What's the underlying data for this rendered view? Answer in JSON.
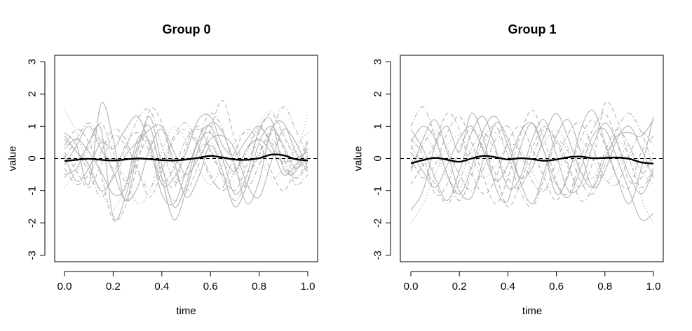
{
  "chart_data": [
    {
      "type": "line",
      "title": "Group 0",
      "xlabel": "time",
      "ylabel": "value",
      "xlim": [
        0,
        1
      ],
      "ylim": [
        -3.2,
        3.2
      ],
      "xticks": [
        "0.0",
        "0.2",
        "0.4",
        "0.6",
        "0.8",
        "1.0"
      ],
      "yticks": [
        "-3",
        "-2",
        "-1",
        "0",
        "1",
        "2",
        "3"
      ],
      "reference_line_y": 0,
      "mean_series": {
        "x": [
          0.0,
          0.05,
          0.1,
          0.15,
          0.2,
          0.25,
          0.3,
          0.35,
          0.4,
          0.45,
          0.5,
          0.55,
          0.6,
          0.65,
          0.7,
          0.75,
          0.8,
          0.85,
          0.9,
          0.95,
          1.0
        ],
        "y": [
          -0.08,
          -0.04,
          -0.01,
          -0.04,
          -0.06,
          -0.03,
          0.0,
          -0.02,
          -0.05,
          -0.06,
          -0.03,
          0.02,
          0.08,
          0.03,
          -0.03,
          -0.04,
          0.01,
          0.12,
          0.1,
          -0.02,
          -0.06
        ]
      },
      "sample_curves": [
        {
          "style": "solid",
          "y": [
            0.8,
            0.4,
            -0.8,
            1.7,
            0.6,
            -1.3,
            0.2,
            1.3,
            -0.2,
            -1.5,
            -0.8,
            0.6,
            1.0,
            0.0,
            -1.1,
            -0.5,
            0.9,
            1.2,
            -0.3,
            -0.4,
            0.5
          ]
        },
        {
          "style": "solid",
          "y": [
            -0.5,
            -0.3,
            0.5,
            0.9,
            -1.8,
            -1.2,
            0.4,
            1.0,
            -0.6,
            -1.9,
            -1.0,
            0.3,
            1.1,
            0.8,
            -0.2,
            -1.4,
            -0.7,
            0.9,
            1.1,
            0.2,
            -0.4
          ]
        },
        {
          "style": "solid",
          "y": [
            0.3,
            0.6,
            0.2,
            -0.4,
            -1.1,
            -0.9,
            0.6,
            0.5,
            -0.8,
            -0.6,
            0.2,
            1.2,
            1.3,
            0.4,
            0.1,
            0.6,
            1.0,
            0.4,
            -0.5,
            -0.2,
            0.3
          ]
        },
        {
          "style": "solid",
          "y": [
            -0.2,
            0.4,
            1.0,
            0.3,
            -0.4,
            -1.3,
            -0.9,
            0.3,
            0.9,
            -0.1,
            -1.2,
            -0.6,
            0.4,
            -0.4,
            -1.5,
            -0.8,
            0.5,
            1.0,
            0.4,
            -0.3,
            0.1
          ]
        },
        {
          "style": "solid",
          "y": [
            0.1,
            -0.7,
            -0.3,
            0.5,
            0.3,
            0.9,
            1.3,
            0.4,
            -1.1,
            -1.4,
            -0.4,
            0.5,
            0.8,
            0.1,
            -0.4,
            0.3,
            0.6,
            0.2,
            -0.1,
            0.0,
            0.2
          ]
        },
        {
          "style": "solid",
          "y": [
            0.7,
            0.2,
            -0.2,
            -1.0,
            -0.6,
            0.1,
            0.5,
            0.9,
            1.0,
            0.2,
            -0.5,
            0.0,
            0.6,
            0.7,
            0.3,
            -0.8,
            -1.2,
            -0.1,
            0.9,
            0.5,
            -0.3
          ]
        },
        {
          "style": "dashed",
          "y": [
            0.4,
            0.9,
            0.5,
            -0.5,
            -1.9,
            -1.5,
            -0.2,
            1.5,
            1.1,
            -0.3,
            -1.0,
            -0.2,
            0.9,
            1.8,
            0.6,
            -0.4,
            0.1,
            0.9,
            0.3,
            -0.6,
            -0.2
          ]
        },
        {
          "style": "dashed",
          "y": [
            -0.6,
            -0.1,
            0.4,
            1.1,
            0.2,
            -0.7,
            0.0,
            0.6,
            -0.3,
            -0.9,
            0.4,
            1.0,
            0.2,
            -0.5,
            -1.0,
            -0.2,
            0.8,
            1.4,
            0.7,
            0.0,
            -0.4
          ]
        },
        {
          "style": "dashed",
          "y": [
            0.2,
            -0.4,
            -0.9,
            -0.2,
            0.7,
            0.4,
            -0.3,
            -1.2,
            -0.4,
            0.6,
            0.9,
            0.3,
            -0.6,
            -0.9,
            0.2,
            0.9,
            0.5,
            -0.4,
            -1.0,
            -0.3,
            0.6
          ]
        },
        {
          "style": "dotted",
          "y": [
            1.5,
            0.8,
            -0.3,
            -1.0,
            -1.6,
            -0.8,
            0.3,
            0.1,
            -0.6,
            -1.3,
            -0.9,
            0.2,
            0.5,
            -0.1,
            -0.5,
            0.2,
            1.1,
            1.5,
            0.8,
            0.2,
            1.4
          ]
        },
        {
          "style": "dotted",
          "y": [
            -0.9,
            -0.4,
            0.3,
            0.6,
            0.0,
            -0.6,
            -1.4,
            -1.0,
            0.2,
            1.0,
            0.5,
            -0.3,
            -0.8,
            -0.2,
            0.5,
            0.8,
            0.1,
            -0.6,
            -0.3,
            0.4,
            0.8
          ]
        },
        {
          "style": "dashdot",
          "y": [
            0.0,
            0.6,
            1.1,
            0.5,
            -0.3,
            0.3,
            1.2,
            1.5,
            0.4,
            -0.7,
            -0.4,
            0.6,
            1.4,
            0.9,
            -0.3,
            -0.9,
            -0.2,
            0.8,
            1.6,
            0.9,
            0.1
          ]
        },
        {
          "style": "dashdot",
          "y": [
            -0.3,
            -0.8,
            -0.5,
            0.2,
            0.9,
            0.6,
            -0.4,
            -0.9,
            -0.2,
            0.7,
            1.1,
            0.4,
            -0.5,
            -1.0,
            -0.4,
            0.3,
            0.9,
            0.5,
            -0.2,
            -0.6,
            -0.1
          ]
        },
        {
          "style": "dashdot",
          "y": [
            0.6,
            0.2,
            -0.4,
            -1.2,
            -0.5,
            0.4,
            0.8,
            0.2,
            -0.7,
            -0.3,
            0.6,
            0.9,
            0.3,
            -0.6,
            -1.3,
            -0.7,
            0.2,
            0.6,
            0.0,
            -0.8,
            -0.5
          ]
        }
      ]
    },
    {
      "type": "line",
      "title": "Group 1",
      "xlabel": "time",
      "ylabel": "value",
      "xlim": [
        0,
        1
      ],
      "ylim": [
        -3.2,
        3.2
      ],
      "xticks": [
        "0.0",
        "0.2",
        "0.4",
        "0.6",
        "0.8",
        "1.0"
      ],
      "yticks": [
        "-3",
        "-2",
        "-1",
        "0",
        "1",
        "2",
        "3"
      ],
      "reference_line_y": 0,
      "mean_series": {
        "x": [
          0.0,
          0.05,
          0.1,
          0.15,
          0.2,
          0.25,
          0.3,
          0.35,
          0.4,
          0.45,
          0.5,
          0.55,
          0.6,
          0.65,
          0.7,
          0.75,
          0.8,
          0.85,
          0.9,
          0.95,
          1.0
        ],
        "y": [
          -0.15,
          -0.05,
          0.02,
          -0.04,
          -0.1,
          0.0,
          0.08,
          0.04,
          -0.03,
          0.01,
          -0.02,
          -0.07,
          -0.03,
          0.04,
          0.06,
          0.01,
          0.02,
          0.03,
          -0.01,
          -0.12,
          -0.16
        ]
      },
      "sample_curves": [
        {
          "style": "solid",
          "y": [
            -1.6,
            -1.0,
            0.4,
            1.0,
            0.2,
            1.4,
            0.6,
            -0.9,
            -1.3,
            0.3,
            1.1,
            0.2,
            -1.1,
            -0.5,
            0.9,
            1.5,
            0.5,
            -0.6,
            -1.4,
            -0.3,
            1.3
          ]
        },
        {
          "style": "solid",
          "y": [
            0.9,
            0.3,
            -0.6,
            -1.3,
            -0.4,
            0.8,
            1.3,
            0.3,
            -0.9,
            -0.6,
            0.6,
            1.2,
            0.1,
            -1.0,
            -0.8,
            0.4,
            1.1,
            0.5,
            -0.5,
            -1.1,
            -0.4
          ]
        },
        {
          "style": "solid",
          "y": [
            -0.4,
            0.6,
            1.2,
            0.2,
            -1.0,
            -1.2,
            0.0,
            1.1,
            0.6,
            -0.7,
            -1.4,
            -0.4,
            0.7,
            1.2,
            0.2,
            -0.9,
            -0.4,
            0.6,
            1.0,
            0.3,
            -0.6
          ]
        },
        {
          "style": "solid",
          "y": [
            0.2,
            -0.4,
            -0.9,
            -0.2,
            0.6,
            1.0,
            0.2,
            -0.7,
            -0.2,
            0.8,
            1.1,
            0.2,
            -0.8,
            -1.2,
            -0.3,
            0.7,
            0.9,
            0.0,
            -1.0,
            -1.9,
            -1.7
          ]
        },
        {
          "style": "solid",
          "y": [
            0.5,
            1.0,
            0.6,
            -0.5,
            -1.1,
            -0.3,
            0.9,
            1.3,
            0.4,
            -0.6,
            -0.3,
            0.7,
            1.4,
            0.6,
            -0.4,
            -0.9,
            0.0,
            0.7,
            0.8,
            0.7,
            1.2
          ]
        },
        {
          "style": "dashed",
          "y": [
            0.0,
            -0.6,
            -0.2,
            0.8,
            1.3,
            0.5,
            -0.6,
            -1.4,
            -0.6,
            0.7,
            1.5,
            0.6,
            -0.7,
            -1.1,
            0.0,
            0.9,
            1.4,
            0.5,
            -0.7,
            -0.6,
            0.2
          ]
        },
        {
          "style": "dashed",
          "y": [
            -0.8,
            -0.2,
            0.5,
            1.4,
            0.9,
            -0.4,
            -1.1,
            -0.6,
            0.5,
            1.0,
            0.3,
            -0.6,
            -1.3,
            -0.4,
            0.6,
            1.2,
            0.4,
            -0.6,
            -0.9,
            0.2,
            0.7
          ]
        },
        {
          "style": "dashed",
          "y": [
            0.6,
            0.1,
            -1.1,
            -0.8,
            0.3,
            0.9,
            0.3,
            -0.5,
            -1.5,
            -0.8,
            0.3,
            1.0,
            0.5,
            -0.3,
            -0.9,
            -0.1,
            1.7,
            1.2,
            0.0,
            -0.9,
            -0.3
          ]
        },
        {
          "style": "dotted",
          "y": [
            -2.0,
            -1.4,
            -0.5,
            0.4,
            0.7,
            0.1,
            -0.6,
            -0.2,
            0.4,
            0.3,
            -0.4,
            -1.0,
            -0.5,
            0.3,
            0.6,
            0.0,
            -0.7,
            -0.3,
            0.4,
            -1.2,
            -2.0
          ]
        },
        {
          "style": "dotted",
          "y": [
            0.3,
            0.7,
            0.2,
            -0.6,
            -0.9,
            -0.2,
            0.5,
            0.8,
            0.1,
            -0.6,
            -0.2,
            0.5,
            0.9,
            0.3,
            -0.4,
            -0.6,
            0.1,
            0.5,
            0.2,
            -0.3,
            0.0
          ]
        },
        {
          "style": "dashdot",
          "y": [
            1.0,
            1.6,
            0.7,
            -0.5,
            -1.3,
            -0.5,
            0.6,
            1.0,
            0.1,
            -1.0,
            -1.5,
            -0.6,
            0.5,
            0.2,
            -0.7,
            -1.1,
            -0.2,
            0.9,
            1.4,
            0.8,
            -0.2
          ]
        },
        {
          "style": "dashdot",
          "y": [
            -0.3,
            0.4,
            0.9,
            0.3,
            -0.5,
            -1.0,
            -0.3,
            0.6,
            1.0,
            0.2,
            -0.7,
            -1.0,
            -0.1,
            0.8,
            1.1,
            0.3,
            -0.6,
            -0.8,
            0.1,
            0.8,
            0.4
          ]
        },
        {
          "style": "dashdot",
          "y": [
            0.4,
            -0.2,
            -0.8,
            -1.4,
            -0.7,
            0.3,
            0.8,
            0.2,
            -0.6,
            -0.9,
            0.0,
            0.9,
            0.6,
            -0.2,
            -1.3,
            -0.9,
            0.2,
            0.9,
            0.4,
            -0.4,
            -0.8
          ]
        }
      ]
    }
  ]
}
